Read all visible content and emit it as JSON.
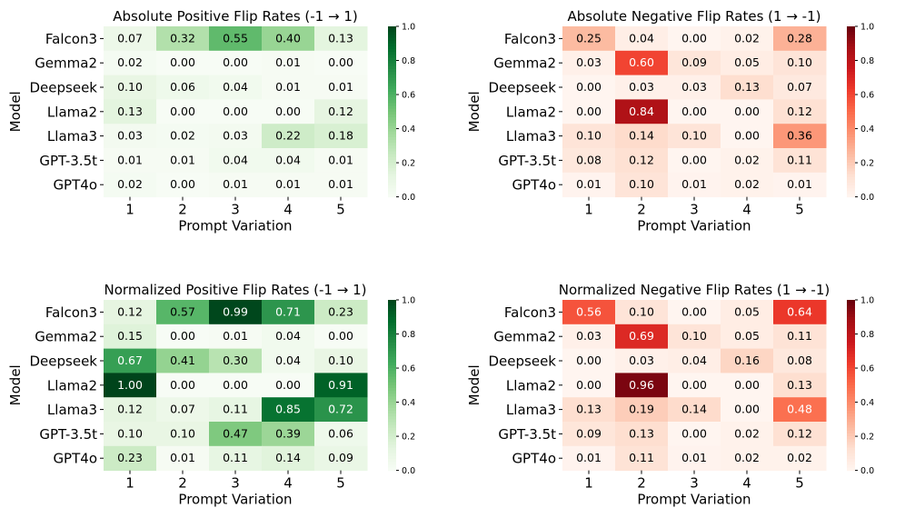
{
  "chart_data": [
    {
      "type": "heatmap",
      "title": "Absolute Positive Flip Rates (-1 → 1)",
      "xlabel": "Prompt Variation",
      "ylabel": "Model",
      "rows": [
        "Falcon3",
        "Gemma2",
        "Deepseek",
        "Llama2",
        "Llama3",
        "GPT-3.5t",
        "GPT4o"
      ],
      "columns": [
        "1",
        "2",
        "3",
        "4",
        "5"
      ],
      "values": [
        [
          0.07,
          0.32,
          0.55,
          0.4,
          0.13
        ],
        [
          0.02,
          0.0,
          0.0,
          0.01,
          0.0
        ],
        [
          0.1,
          0.06,
          0.04,
          0.01,
          0.01
        ],
        [
          0.13,
          0.0,
          0.0,
          0.0,
          0.12
        ],
        [
          0.03,
          0.02,
          0.03,
          0.22,
          0.18
        ],
        [
          0.01,
          0.01,
          0.04,
          0.04,
          0.01
        ],
        [
          0.02,
          0.0,
          0.01,
          0.01,
          0.01
        ]
      ],
      "colormap": "Greens",
      "vmin": 0.0,
      "vmax": 1.0,
      "colorbar_ticks": [
        "0.0",
        "0.2",
        "0.4",
        "0.6",
        "0.8",
        "1.0"
      ]
    },
    {
      "type": "heatmap",
      "title": "Absolute Negative Flip Rates (1 → -1)",
      "xlabel": "Prompt Variation",
      "ylabel": "Model",
      "rows": [
        "Falcon3",
        "Gemma2",
        "Deepseek",
        "Llama2",
        "Llama3",
        "GPT-3.5t",
        "GPT4o"
      ],
      "columns": [
        "1",
        "2",
        "3",
        "4",
        "5"
      ],
      "values": [
        [
          0.25,
          0.04,
          0.0,
          0.02,
          0.28
        ],
        [
          0.03,
          0.6,
          0.09,
          0.05,
          0.1
        ],
        [
          0.0,
          0.03,
          0.03,
          0.13,
          0.07
        ],
        [
          0.0,
          0.84,
          0.0,
          0.0,
          0.12
        ],
        [
          0.1,
          0.14,
          0.1,
          0.0,
          0.36
        ],
        [
          0.08,
          0.12,
          0.0,
          0.02,
          0.11
        ],
        [
          0.01,
          0.1,
          0.01,
          0.02,
          0.01
        ]
      ],
      "colormap": "Reds",
      "vmin": 0.0,
      "vmax": 1.0,
      "colorbar_ticks": [
        "0.0",
        "0.2",
        "0.4",
        "0.6",
        "0.8",
        "1.0"
      ]
    },
    {
      "type": "heatmap",
      "title": "Normalized Positive Flip Rates (-1 → 1)",
      "xlabel": "Prompt Variation",
      "ylabel": "Model",
      "rows": [
        "Falcon3",
        "Gemma2",
        "Deepseek",
        "Llama2",
        "Llama3",
        "GPT-3.5t",
        "GPT4o"
      ],
      "columns": [
        "1",
        "2",
        "3",
        "4",
        "5"
      ],
      "values": [
        [
          0.12,
          0.57,
          0.99,
          0.71,
          0.23
        ],
        [
          0.15,
          0.0,
          0.01,
          0.04,
          0.0
        ],
        [
          0.67,
          0.41,
          0.3,
          0.04,
          0.1
        ],
        [
          1.0,
          0.0,
          0.0,
          0.0,
          0.91
        ],
        [
          0.12,
          0.07,
          0.11,
          0.85,
          0.72
        ],
        [
          0.1,
          0.1,
          0.47,
          0.39,
          0.06
        ],
        [
          0.23,
          0.01,
          0.11,
          0.14,
          0.09
        ]
      ],
      "colormap": "Greens",
      "vmin": 0.0,
      "vmax": 1.0,
      "colorbar_ticks": [
        "0.0",
        "0.2",
        "0.4",
        "0.6",
        "0.8",
        "1.0"
      ]
    },
    {
      "type": "heatmap",
      "title": "Normalized Negative Flip Rates (1 → -1)",
      "xlabel": "Prompt Variation",
      "ylabel": "Model",
      "rows": [
        "Falcon3",
        "Gemma2",
        "Deepseek",
        "Llama2",
        "Llama3",
        "GPT-3.5t",
        "GPT4o"
      ],
      "columns": [
        "1",
        "2",
        "3",
        "4",
        "5"
      ],
      "values": [
        [
          0.56,
          0.1,
          0.0,
          0.05,
          0.64
        ],
        [
          0.03,
          0.69,
          0.1,
          0.05,
          0.11
        ],
        [
          0.0,
          0.03,
          0.04,
          0.16,
          0.08
        ],
        [
          0.0,
          0.96,
          0.0,
          0.0,
          0.13
        ],
        [
          0.13,
          0.19,
          0.14,
          0.0,
          0.48
        ],
        [
          0.09,
          0.13,
          0.0,
          0.02,
          0.12
        ],
        [
          0.01,
          0.11,
          0.01,
          0.02,
          0.02
        ]
      ],
      "colormap": "Reds",
      "vmin": 0.0,
      "vmax": 1.0,
      "colorbar_ticks": [
        "0.0",
        "0.2",
        "0.4",
        "0.6",
        "0.8",
        "1.0"
      ]
    }
  ]
}
